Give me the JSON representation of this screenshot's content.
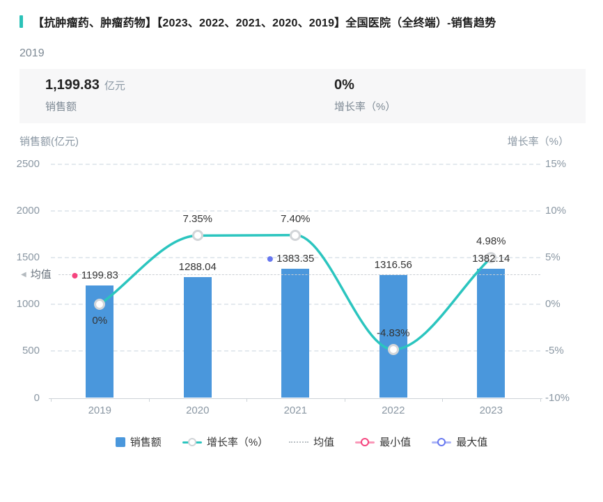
{
  "title": {
    "text": "【抗肿瘤药、肿瘤药物】【2023、2022、2021、2020、2019】全国医院（全终端）-销售趋势"
  },
  "summary": {
    "period": "2019",
    "stats": [
      {
        "value": "1,199.83",
        "unit": "亿元",
        "label": "销售额"
      },
      {
        "value": "0%",
        "unit": "",
        "label": "增长率（%）"
      }
    ]
  },
  "chart_data": {
    "type": "bar+line",
    "categories": [
      "2019",
      "2020",
      "2021",
      "2022",
      "2023"
    ],
    "series": [
      {
        "name": "销售额",
        "type": "bar",
        "axis": "left",
        "color": "#4A97DC",
        "values": [
          1199.83,
          1288.04,
          1383.35,
          1316.56,
          1382.14
        ],
        "labels": [
          "1199.83",
          "1288.04",
          "1383.35",
          "1316.56",
          "1382.14"
        ]
      },
      {
        "name": "增长率（%）",
        "type": "line",
        "axis": "right",
        "color": "#2BC5BF",
        "values": [
          0,
          7.35,
          7.4,
          -4.83,
          4.98
        ],
        "labels": [
          "0%",
          "7.35%",
          "7.40%",
          "-4.83%",
          "4.98%"
        ]
      }
    ],
    "left_axis": {
      "name": "销售额(亿元)",
      "min": 0,
      "max": 2500,
      "ticks": [
        "2500",
        "2000",
        "1500",
        "1000",
        "500",
        "0"
      ]
    },
    "right_axis": {
      "name": "增长率（%）",
      "min": -10,
      "max": 15,
      "ticks": [
        "15%",
        "10%",
        "5%",
        "0%",
        "-5%",
        "-10%"
      ]
    },
    "mean_line": {
      "label": "均值",
      "value": 1313.98
    },
    "min_marker": {
      "label": "最小值",
      "index": 0,
      "color": "#F5447E"
    },
    "max_marker": {
      "label": "最大值",
      "index": 2,
      "color": "#6677F0"
    },
    "grid": true,
    "legend": [
      "销售额",
      "增长率（%）",
      "均值",
      "最小值",
      "最大值"
    ],
    "legend_position": "bottom"
  }
}
